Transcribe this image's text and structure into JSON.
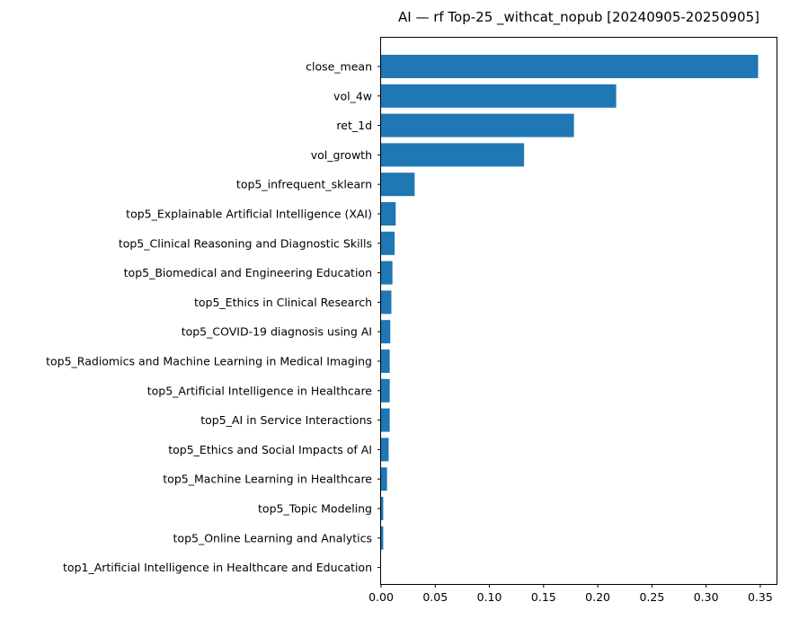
{
  "chart_data": {
    "type": "bar",
    "orientation": "horizontal",
    "title": "AI — rf Top-25 _withcat_nopub [20240905-20250905]",
    "xlabel": "",
    "ylabel": "",
    "xlim": [
      0.0,
      0.365
    ],
    "xticks": [
      0.0,
      0.05,
      0.1,
      0.15,
      0.2,
      0.25,
      0.3,
      0.35
    ],
    "xtick_labels": [
      "0.00",
      "0.05",
      "0.10",
      "0.15",
      "0.20",
      "0.25",
      "0.30",
      "0.35"
    ],
    "grid": false,
    "legend": false,
    "bar_color": "#1f77b4",
    "categories": [
      "close_mean",
      "vol_4w",
      "ret_1d",
      "vol_growth",
      "top5_infrequent_sklearn",
      "top5_Explainable Artificial Intelligence (XAI)",
      "top5_Clinical Reasoning and Diagnostic Skills",
      "top5_Biomedical and Engineering Education",
      "top5_Ethics in Clinical Research",
      "top5_COVID-19 diagnosis using AI",
      "top5_Radiomics and Machine Learning in Medical Imaging",
      "top5_Artificial Intelligence in Healthcare",
      "top5_AI in Service Interactions",
      "top5_Ethics and Social Impacts of AI",
      "top5_Machine Learning in Healthcare",
      "top5_Topic Modeling",
      "top5_Online Learning and Analytics",
      "top1_Artificial Intelligence in Healthcare and Education"
    ],
    "values": [
      0.348,
      0.217,
      0.178,
      0.132,
      0.031,
      0.0135,
      0.0125,
      0.0105,
      0.0095,
      0.0085,
      0.008,
      0.008,
      0.008,
      0.007,
      0.0055,
      0.002,
      0.002,
      0.0
    ]
  }
}
